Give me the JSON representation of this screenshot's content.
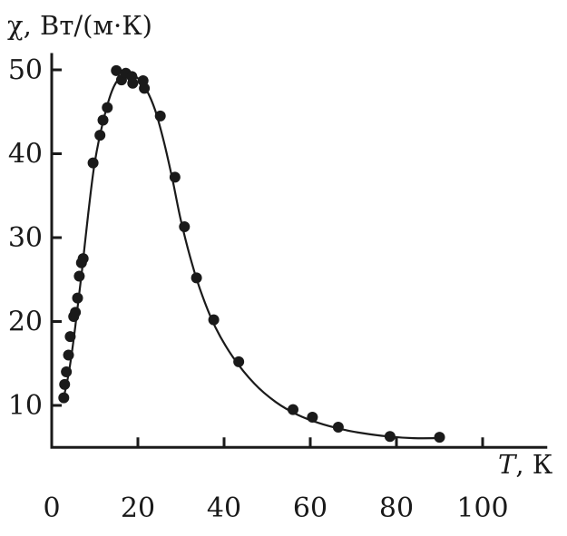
{
  "chart_data": {
    "type": "scatter",
    "title": "",
    "ylabel": "χ, Вт/(м·К)",
    "xlabel_symbol": "T",
    "xlabel_unit": ", К",
    "xlim": [
      0,
      115
    ],
    "ylim": [
      5,
      52
    ],
    "x_ticks": [
      0,
      20,
      40,
      60,
      80,
      100
    ],
    "y_ticks": [
      10,
      20,
      30,
      40,
      50
    ],
    "grid": false,
    "series": [
      {
        "points": [
          [
            2.8,
            10.9
          ],
          [
            3.0,
            12.5
          ],
          [
            3.4,
            14.0
          ],
          [
            3.9,
            16.0
          ],
          [
            4.3,
            18.2
          ],
          [
            5.1,
            20.6
          ],
          [
            5.5,
            21.1
          ],
          [
            6.0,
            22.8
          ],
          [
            6.4,
            25.4
          ],
          [
            6.9,
            27.0
          ],
          [
            7.3,
            27.5
          ],
          [
            9.6,
            38.9
          ],
          [
            11.2,
            42.2
          ],
          [
            11.9,
            44.0
          ],
          [
            12.9,
            45.5
          ],
          [
            15.0,
            49.9
          ],
          [
            16.2,
            48.8
          ],
          [
            17.2,
            49.6
          ],
          [
            18.6,
            49.2
          ],
          [
            18.8,
            48.4
          ],
          [
            21.2,
            48.7
          ],
          [
            21.5,
            47.8
          ],
          [
            25.2,
            44.5
          ],
          [
            28.6,
            37.2
          ],
          [
            30.8,
            31.3
          ],
          [
            33.6,
            25.2
          ],
          [
            37.6,
            20.2
          ],
          [
            43.4,
            15.2
          ],
          [
            56.0,
            9.5
          ],
          [
            60.5,
            8.6
          ],
          [
            66.5,
            7.4
          ],
          [
            78.5,
            6.3
          ],
          [
            90.0,
            6.2
          ]
        ]
      }
    ],
    "fit_curve": [
      [
        2.5,
        10.3
      ],
      [
        4.0,
        14.0
      ],
      [
        5.5,
        19.5
      ],
      [
        7.0,
        26.0
      ],
      [
        8.5,
        33.0
      ],
      [
        10.0,
        39.0
      ],
      [
        12.0,
        44.0
      ],
      [
        14.0,
        47.5
      ],
      [
        16.0,
        49.2
      ],
      [
        18.0,
        49.5
      ],
      [
        20.0,
        49.0
      ],
      [
        22.0,
        47.6
      ],
      [
        24.0,
        45.2
      ],
      [
        26.0,
        41.5
      ],
      [
        28.0,
        37.0
      ],
      [
        30.0,
        32.0
      ],
      [
        32.5,
        27.0
      ],
      [
        35.0,
        23.0
      ],
      [
        38.0,
        19.3
      ],
      [
        42.0,
        15.8
      ],
      [
        47.0,
        12.6
      ],
      [
        52.0,
        10.4
      ],
      [
        57.0,
        8.9
      ],
      [
        62.0,
        7.9
      ],
      [
        67.0,
        7.2
      ],
      [
        72.0,
        6.7
      ],
      [
        78.0,
        6.3
      ],
      [
        84.0,
        6.1
      ],
      [
        90.0,
        6.1
      ]
    ]
  }
}
